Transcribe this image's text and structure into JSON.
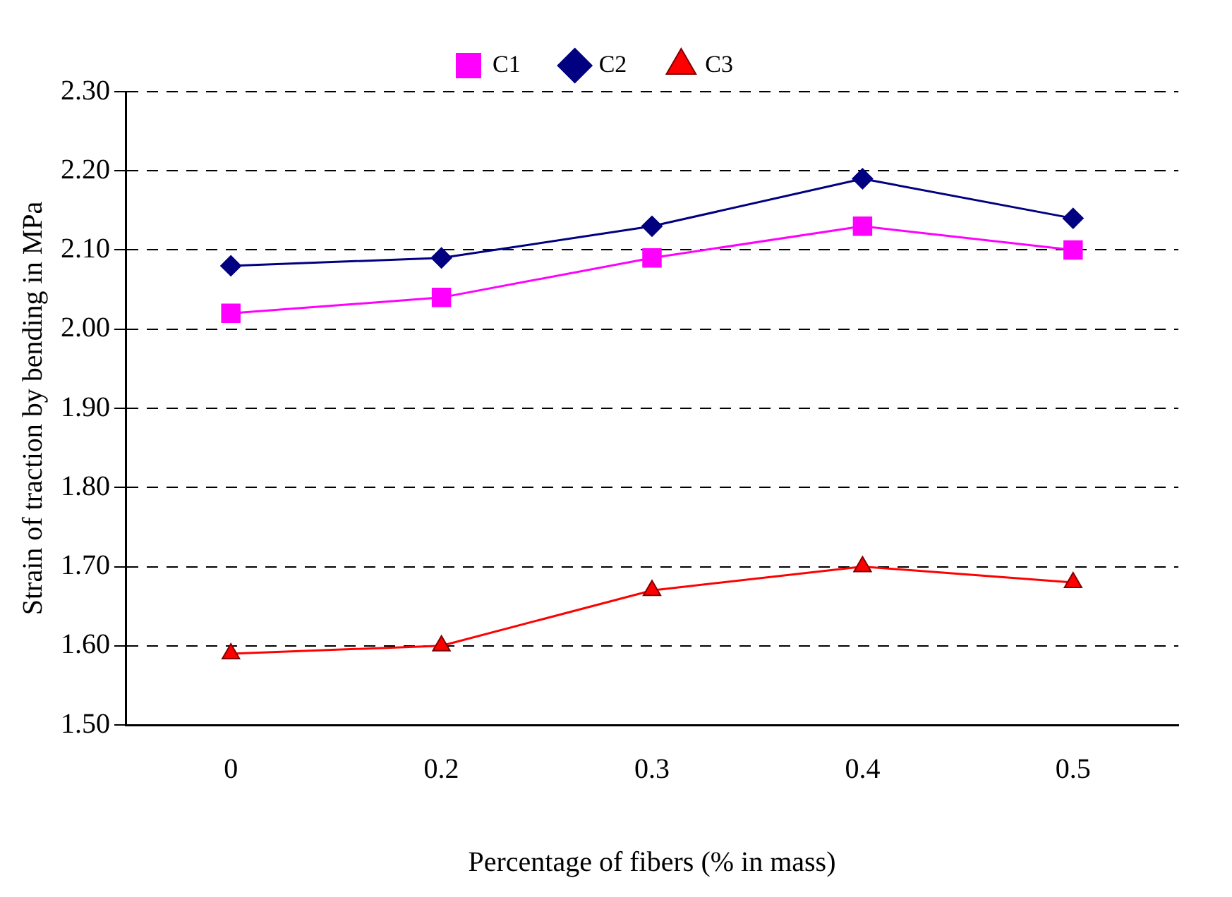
{
  "chart_data": {
    "type": "line",
    "xlabel": "Percentage of fibers (% in mass)",
    "ylabel": "Strain of traction by bending in MPa",
    "categories": [
      "0",
      "0.2",
      "0.3",
      "0.4",
      "0.5"
    ],
    "series": [
      {
        "name": "C1",
        "color": "#ff00ff",
        "marker": "square",
        "values": [
          2.02,
          2.04,
          2.09,
          2.13,
          2.1
        ]
      },
      {
        "name": "C2",
        "color": "#000080",
        "marker": "diamond",
        "values": [
          2.08,
          2.09,
          2.13,
          2.19,
          2.14
        ]
      },
      {
        "name": "C3",
        "color": "#ff0000",
        "marker": "triangle",
        "values": [
          1.59,
          1.6,
          1.67,
          1.7,
          1.68
        ]
      }
    ],
    "ylim": [
      1.5,
      2.3
    ],
    "yticks": [
      {
        "value": 1.5,
        "label": "1.50"
      },
      {
        "value": 1.6,
        "label": "1.60"
      },
      {
        "value": 1.7,
        "label": "1.70"
      },
      {
        "value": 1.8,
        "label": "1.80"
      },
      {
        "value": 1.9,
        "label": "1.90"
      },
      {
        "value": 2.0,
        "label": "2.00"
      },
      {
        "value": 2.1,
        "label": "2.10"
      },
      {
        "value": 2.2,
        "label": "2.20"
      },
      {
        "value": 2.3,
        "label": "2.30"
      }
    ],
    "grid": "y",
    "legend": "top"
  }
}
